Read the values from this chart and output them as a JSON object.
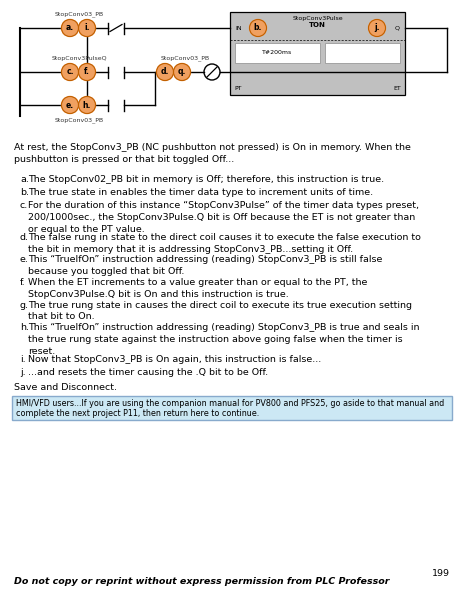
{
  "background_color": "#ffffff",
  "diagram": {
    "ton_block_bg": "#c0c0c0",
    "node_color": "#f0a060",
    "node_border": "#c06000",
    "timer_preset": "T#200ms",
    "label_stopconv03_pb_top": "StopConv03_PB",
    "label_stopconv3pulseq": "StopConv3PulseQ",
    "label_stopconv03_pb_mid": "StopConv03_PB",
    "label_stopconv03_pb_bot": "StopConv03_PB"
  },
  "body_text_intro": "At rest, the StopConv3_PB (NC pushbutton not pressed) is On in memory. When the\npushbutton is pressed or that bit toggled Off...",
  "item_labels": [
    "a.",
    "b.",
    "c.",
    "d.",
    "e.",
    "f.",
    "g.",
    "h.",
    "i.",
    "j."
  ],
  "item_contents": [
    "The StopConv02_PB bit in memory is Off; therefore, this instruction is true.",
    "The true state in enables the timer data type to increment units of time.",
    "For the duration of this instance “StopConv3Pulse” of the timer data types preset,\n200/1000sec., the StopConv3Pulse.Q bit is Off because the ET is not greater than\nor equal to the PT value.",
    "The false rung in state to the direct coil causes it to execute the false execution to\nthe bit in memory that it is addressing StopConv3_PB...setting it Off.",
    "This “TrueIfOn” instruction addressing (reading) StopConv3_PB is still false\nbecause you toggled that bit Off.",
    "When the ET increments to a value greater than or equal to the PT, the\nStopConv3Pulse.Q bit is On and this instruction is true.",
    "The true rung state in causes the direct coil to execute its true execution setting\nthat bit to On.",
    "This “TrueIfOn” instruction addressing (reading) StopConv3_PB is true and seals in\nthe true rung state against the instruction above going false when the timer is\nreset.",
    "Now that StopConv3_PB is On again, this instruction is false...",
    "...and resets the timer causing the .Q bit to be Off."
  ],
  "save_disconnect": "Save and Disconnect.",
  "hmi_note_line1": "HMI/VFD users...If you are using the companion manual for PV800 and PFS25, go aside to that manual and",
  "hmi_note_line2": "complete the next project P11, then return here to continue.",
  "hmi_bg": "#cce8f4",
  "hmi_border": "#88aacc",
  "page_number": "199",
  "footer": "Do not copy or reprint without express permission from PLC Professor"
}
